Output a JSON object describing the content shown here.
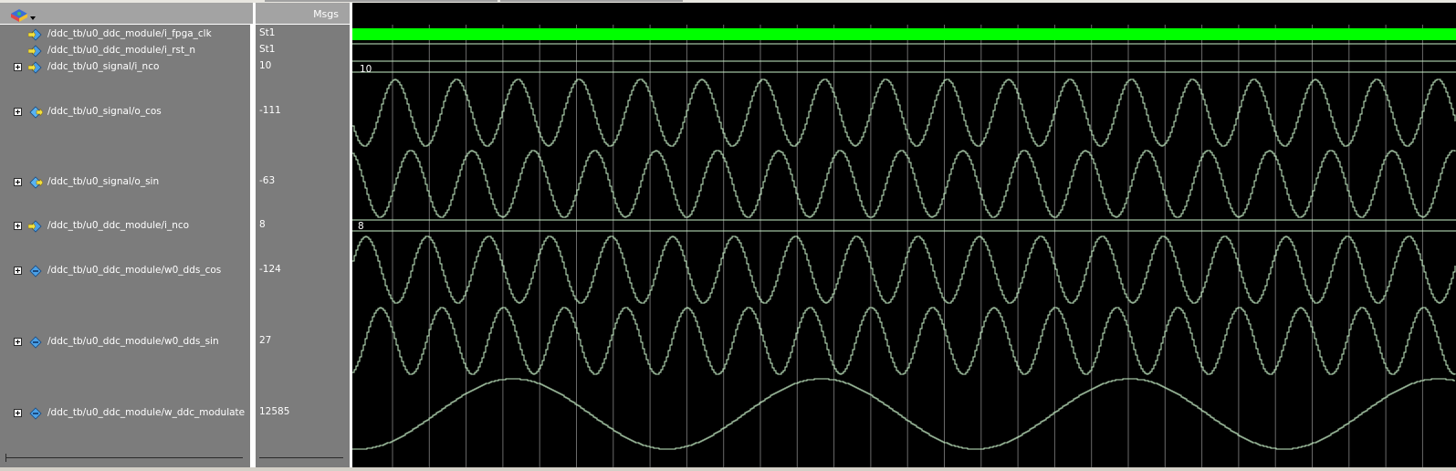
{
  "header": {
    "msgs_label": "Msgs"
  },
  "signals": [
    {
      "path": "/ddc_tb/u0_ddc_module/i_fpga_clk",
      "value": "St1",
      "expandable": false,
      "kind": "input"
    },
    {
      "path": "/ddc_tb/u0_ddc_module/i_rst_n",
      "value": "St1",
      "expandable": false,
      "kind": "input"
    },
    {
      "path": "/ddc_tb/u0_signal/i_nco",
      "value": "10",
      "expandable": true,
      "kind": "input"
    },
    {
      "path": "/ddc_tb/u0_signal/o_cos",
      "value": "-111",
      "expandable": true,
      "kind": "output"
    },
    {
      "path": "/ddc_tb/u0_signal/o_sin",
      "value": "-63",
      "expandable": true,
      "kind": "output"
    },
    {
      "path": "/ddc_tb/u0_ddc_module/i_nco",
      "value": "8",
      "expandable": true,
      "kind": "input"
    },
    {
      "path": "/ddc_tb/u0_ddc_module/w0_dds_cos",
      "value": "-124",
      "expandable": true,
      "kind": "wire"
    },
    {
      "path": "/ddc_tb/u0_ddc_module/w0_dds_sin",
      "value": "27",
      "expandable": true,
      "kind": "wire"
    },
    {
      "path": "/ddc_tb/u0_ddc_module/w_ddc_modulate",
      "value": "12585",
      "expandable": true,
      "kind": "wire"
    }
  ],
  "bus_values": {
    "u0_signal_i_nco": "10",
    "u0_ddc_module_i_nco": "8"
  },
  "colors": {
    "clock_fill": "#00ff00",
    "trace": "#c8f0c8",
    "grid": "#6a6a6a",
    "panel": "#7c7c7c",
    "wave_bg": "#000000"
  },
  "icons": {
    "logo": "modelsim-logo-icon",
    "input": "input-signal-icon",
    "output": "output-signal-icon",
    "wire": "wire-signal-icon",
    "expand": "expand-plus-icon"
  }
}
